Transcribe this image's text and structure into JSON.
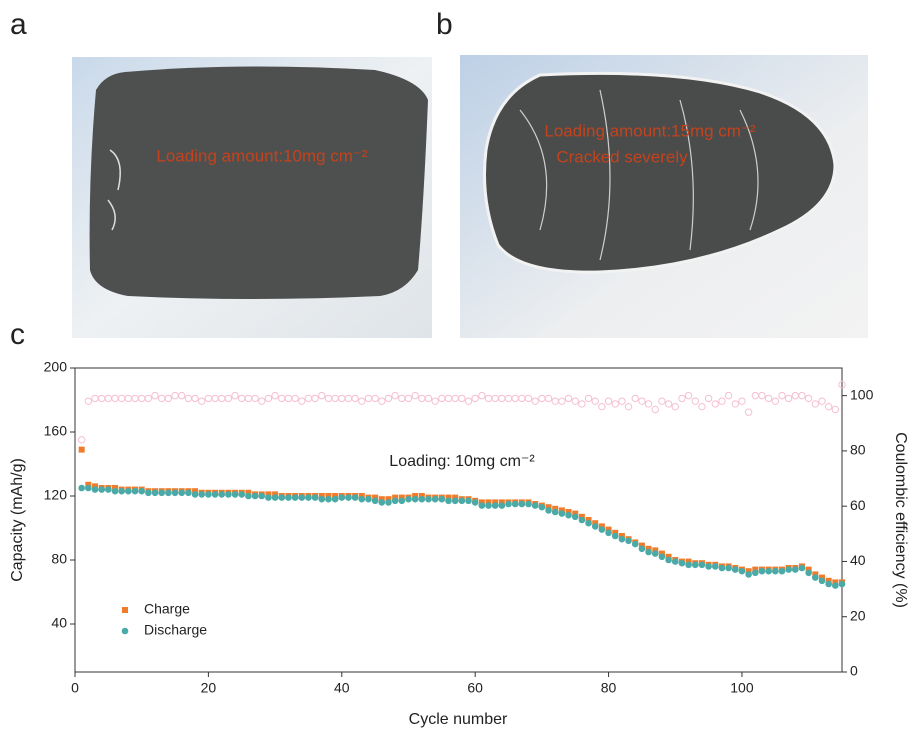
{
  "panels": {
    "a": {
      "label": "a",
      "annotation": "Loading amount:10mg cm⁻²"
    },
    "b": {
      "label": "b",
      "annotation_lines": [
        "Loading amount:15mg cm⁻²",
        "Cracked severely"
      ]
    },
    "c": {
      "label": "c"
    }
  },
  "chart_data": {
    "type": "scatter",
    "annotation": "Loading: 10mg cm⁻²",
    "x_label": "Cycle number",
    "y_label": "Capacity (mAh/g)",
    "y2_label": "Coulombic efficiency (%)",
    "xlim": [
      0,
      115
    ],
    "xticks": [
      0,
      20,
      40,
      60,
      80,
      100
    ],
    "ylim": [
      10,
      200
    ],
    "yticks": [
      40,
      80,
      120,
      160,
      200
    ],
    "y2lim": [
      0,
      110
    ],
    "y2ticks": [
      0,
      20,
      40,
      60,
      80,
      100
    ],
    "legend": "lower-left",
    "x": [
      1,
      2,
      3,
      4,
      5,
      6,
      7,
      8,
      9,
      10,
      11,
      12,
      13,
      14,
      15,
      16,
      17,
      18,
      19,
      20,
      21,
      22,
      23,
      24,
      25,
      26,
      27,
      28,
      29,
      30,
      31,
      32,
      33,
      34,
      35,
      36,
      37,
      38,
      39,
      40,
      41,
      42,
      43,
      44,
      45,
      46,
      47,
      48,
      49,
      50,
      51,
      52,
      53,
      54,
      55,
      56,
      57,
      58,
      59,
      60,
      61,
      62,
      63,
      64,
      65,
      66,
      67,
      68,
      69,
      70,
      71,
      72,
      73,
      74,
      75,
      76,
      77,
      78,
      79,
      80,
      81,
      82,
      83,
      84,
      85,
      86,
      87,
      88,
      89,
      90,
      91,
      92,
      93,
      94,
      95,
      96,
      97,
      98,
      99,
      100,
      101,
      102,
      103,
      104,
      105,
      106,
      107,
      108,
      109,
      110,
      111,
      112,
      113,
      114,
      115
    ],
    "series": [
      {
        "name": "Charge",
        "color": "#f07c2b",
        "marker": "square",
        "values": [
          149,
          127,
          126,
          125,
          125,
          125,
          124,
          124,
          124,
          124,
          123,
          123,
          123,
          123,
          123,
          123,
          123,
          123,
          122,
          122,
          122,
          122,
          122,
          122,
          122,
          122,
          121,
          121,
          121,
          121,
          120,
          120,
          120,
          120,
          120,
          120,
          120,
          120,
          120,
          120,
          120,
          120,
          120,
          119,
          119,
          118,
          118,
          119,
          119,
          119,
          120,
          120,
          119,
          119,
          119,
          119,
          119,
          118,
          118,
          117,
          116,
          116,
          116,
          116,
          116,
          116,
          116,
          116,
          115,
          114,
          113,
          112,
          111,
          110,
          109,
          107,
          105,
          103,
          101,
          99,
          97,
          95,
          93,
          91,
          89,
          87,
          86,
          84,
          82,
          80,
          79,
          79,
          78,
          78,
          77,
          77,
          76,
          76,
          75,
          74,
          73,
          74,
          74,
          74,
          74,
          74,
          75,
          75,
          76,
          74,
          71,
          69,
          67,
          66,
          66
        ]
      },
      {
        "name": "Discharge",
        "color": "#4aaaa8",
        "marker": "circle",
        "values": [
          125,
          125,
          124,
          124,
          124,
          123,
          123,
          123,
          123,
          123,
          122,
          122,
          122,
          122,
          122,
          122,
          122,
          121,
          121,
          121,
          121,
          121,
          121,
          121,
          121,
          120,
          120,
          120,
          119,
          119,
          119,
          119,
          119,
          119,
          119,
          119,
          118,
          118,
          118,
          119,
          119,
          119,
          118,
          118,
          117,
          116,
          116,
          117,
          117,
          118,
          118,
          118,
          118,
          118,
          118,
          117,
          117,
          117,
          117,
          116,
          114,
          114,
          114,
          114,
          115,
          115,
          115,
          115,
          114,
          113,
          111,
          110,
          109,
          108,
          107,
          105,
          103,
          101,
          99,
          97,
          95,
          93,
          92,
          90,
          87,
          85,
          84,
          82,
          80,
          79,
          78,
          77,
          77,
          77,
          76,
          76,
          75,
          75,
          74,
          73,
          71,
          72,
          73,
          73,
          73,
          73,
          74,
          74,
          75,
          72,
          69,
          67,
          65,
          64,
          65
        ]
      },
      {
        "color": "#f5bfd2",
        "marker": "open-circle",
        "axis": "y2",
        "values": [
          84,
          98,
          99,
          99,
          99,
          99,
          99,
          99,
          99,
          99,
          99,
          100,
          99,
          99,
          100,
          100,
          99,
          99,
          98,
          99,
          99,
          99,
          99,
          100,
          99,
          99,
          99,
          98,
          99,
          100,
          99,
          99,
          99,
          98,
          99,
          99,
          100,
          99,
          99,
          99,
          99,
          99,
          98,
          99,
          99,
          98,
          99,
          100,
          99,
          99,
          100,
          99,
          99,
          98,
          99,
          99,
          99,
          99,
          98,
          99,
          100,
          99,
          99,
          99,
          99,
          99,
          99,
          99,
          98,
          99,
          99,
          98,
          98,
          99,
          98,
          97,
          99,
          98,
          96,
          98,
          97,
          98,
          96,
          99,
          98,
          97,
          95,
          98,
          97,
          96,
          99,
          100,
          98,
          96,
          99,
          97,
          98,
          100,
          97,
          98,
          94,
          100,
          100,
          99,
          98,
          100,
          99,
          100,
          100,
          99,
          97,
          98,
          96,
          95,
          104
        ]
      }
    ]
  }
}
